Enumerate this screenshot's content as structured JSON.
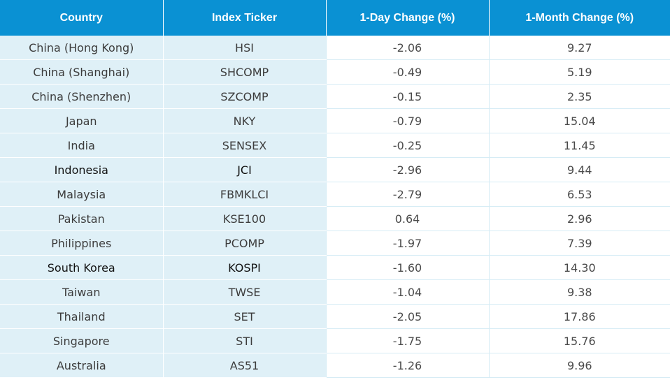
{
  "table": {
    "headers": [
      "Country",
      "Index Ticker",
      "1-Day Change (%)",
      "1-Month Change (%)"
    ],
    "rows": [
      [
        "China (Hong Kong)",
        "HSI",
        "-2.06",
        "9.27"
      ],
      [
        "China (Shanghai)",
        "SHCOMP",
        "-0.49",
        "5.19"
      ],
      [
        "China (Shenzhen)",
        "SZCOMP",
        "-0.15",
        "2.35"
      ],
      [
        "Japan",
        "NKY",
        "-0.79",
        "15.04"
      ],
      [
        "India",
        "SENSEX",
        "-0.25",
        "11.45"
      ],
      [
        "Indonesia",
        "JCI",
        "-2.96",
        "9.44"
      ],
      [
        "Malaysia",
        "FBMKLCI",
        "-2.79",
        "6.53"
      ],
      [
        "Pakistan",
        "KSE100",
        "0.64",
        "2.96"
      ],
      [
        "Philippines",
        "PCOMP",
        "-1.97",
        "7.39"
      ],
      [
        "South Korea",
        "KOSPI",
        "-1.60",
        "14.30"
      ],
      [
        "Taiwan",
        "TWSE",
        "-1.04",
        "9.38"
      ],
      [
        "Thailand",
        "SET",
        "-2.05",
        "17.86"
      ],
      [
        "Singapore",
        "STI",
        "-1.75",
        "15.76"
      ],
      [
        "Australia",
        "AS51",
        "-1.26",
        "9.96"
      ]
    ]
  },
  "colors": {
    "header_bg": "#0a91d3",
    "header_text": "#ffffff",
    "shaded_cell_bg": "#dff0f7",
    "body_bg": "#ffffff",
    "grid_line": "#d6ecf5"
  }
}
